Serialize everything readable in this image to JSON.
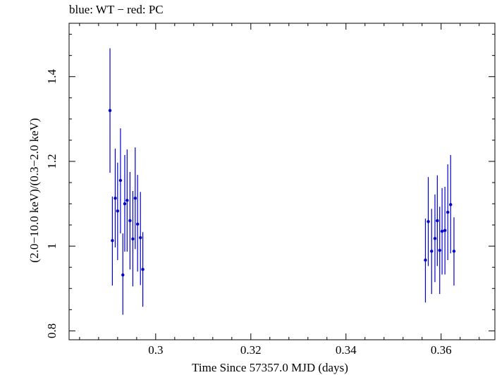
{
  "chart_data": {
    "type": "scatter",
    "title": "blue: WT − red: PC",
    "xlabel": "Time Since 57357.0 MJD (days)",
    "ylabel": "(2.0−10.0 keV)/(0.3−2.0 keV)",
    "xlim": [
      0.2818,
      0.3713
    ],
    "ylim": [
      0.779,
      1.526
    ],
    "x_ticks": [
      {
        "value": 0.3,
        "label": "0.3"
      },
      {
        "value": 0.32,
        "label": "0.32"
      },
      {
        "value": 0.34,
        "label": "0.34"
      },
      {
        "value": 0.36,
        "label": "0.36"
      }
    ],
    "y_ticks": [
      {
        "value": 0.8,
        "label": "0.8"
      },
      {
        "value": 1.0,
        "label": "1"
      },
      {
        "value": 1.2,
        "label": "1.2"
      },
      {
        "value": 1.4,
        "label": "1.4"
      }
    ],
    "grid": false,
    "series": [
      {
        "color": "#0000cc",
        "points": [
          {
            "x": 0.2904,
            "y": 1.32,
            "lo": 1.173,
            "hi": 1.467
          },
          {
            "x": 0.2909,
            "y": 1.013,
            "lo": 0.907,
            "hi": 1.117
          },
          {
            "x": 0.2915,
            "y": 1.113,
            "lo": 0.997,
            "hi": 1.23
          },
          {
            "x": 0.292,
            "y": 1.083,
            "lo": 0.967,
            "hi": 1.197
          },
          {
            "x": 0.2926,
            "y": 1.155,
            "lo": 1.03,
            "hi": 1.278
          },
          {
            "x": 0.2931,
            "y": 0.932,
            "lo": 0.838,
            "hi": 1.03
          },
          {
            "x": 0.2935,
            "y": 1.1,
            "lo": 0.987,
            "hi": 1.215
          },
          {
            "x": 0.294,
            "y": 1.108,
            "lo": 0.987,
            "hi": 1.228
          },
          {
            "x": 0.2946,
            "y": 1.06,
            "lo": 0.945,
            "hi": 1.175
          },
          {
            "x": 0.2952,
            "y": 1.017,
            "lo": 0.905,
            "hi": 1.13
          },
          {
            "x": 0.2957,
            "y": 1.113,
            "lo": 0.993,
            "hi": 1.233
          },
          {
            "x": 0.2962,
            "y": 1.052,
            "lo": 0.94,
            "hi": 1.168
          },
          {
            "x": 0.2968,
            "y": 1.02,
            "lo": 0.908,
            "hi": 1.128
          },
          {
            "x": 0.2973,
            "y": 0.945,
            "lo": 0.857,
            "hi": 1.033
          },
          {
            "x": 0.3567,
            "y": 0.967,
            "lo": 0.867,
            "hi": 1.065
          },
          {
            "x": 0.3573,
            "y": 1.058,
            "lo": 0.953,
            "hi": 1.163
          },
          {
            "x": 0.358,
            "y": 0.988,
            "lo": 0.887,
            "hi": 1.088
          },
          {
            "x": 0.3587,
            "y": 1.018,
            "lo": 0.915,
            "hi": 1.122
          },
          {
            "x": 0.3592,
            "y": 1.06,
            "lo": 0.953,
            "hi": 1.167
          },
          {
            "x": 0.3597,
            "y": 0.99,
            "lo": 0.887,
            "hi": 1.093
          },
          {
            "x": 0.3602,
            "y": 1.035,
            "lo": 0.933,
            "hi": 1.137
          },
          {
            "x": 0.3608,
            "y": 1.037,
            "lo": 0.933,
            "hi": 1.14
          },
          {
            "x": 0.3614,
            "y": 1.08,
            "lo": 0.967,
            "hi": 1.193
          },
          {
            "x": 0.362,
            "y": 1.098,
            "lo": 0.983,
            "hi": 1.215
          },
          {
            "x": 0.3627,
            "y": 0.988,
            "lo": 0.907,
            "hi": 1.068
          }
        ]
      }
    ]
  }
}
